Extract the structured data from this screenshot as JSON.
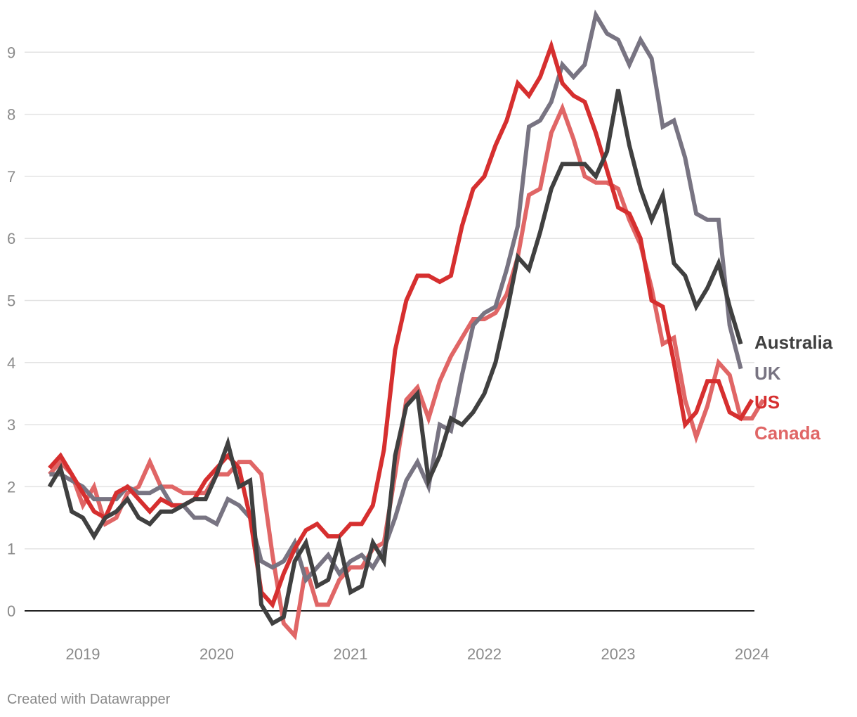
{
  "chart_data": {
    "type": "line",
    "title": "",
    "xlabel": "",
    "ylabel": "",
    "xlim": [
      2018.65,
      2024.0
    ],
    "ylim": [
      -0.4,
      9.6
    ],
    "yticks": [
      0,
      1,
      2,
      3,
      4,
      5,
      6,
      7,
      8,
      9
    ],
    "xticks": [
      2019,
      2020,
      2021,
      2022,
      2023,
      2024
    ],
    "grid": true,
    "legend": "direct labels at right end of lines",
    "start": 2018.75,
    "step_months": 1,
    "series": [
      {
        "name": "Canada",
        "color": "#e06666",
        "values": [
          2.2,
          2.4,
          2.2,
          1.7,
          2.0,
          1.4,
          1.5,
          1.9,
          2.0,
          2.4,
          2.0,
          2.0,
          1.9,
          1.9,
          1.9,
          2.2,
          2.2,
          2.4,
          2.4,
          2.2,
          0.9,
          -0.2,
          -0.4,
          0.7,
          0.1,
          0.1,
          0.5,
          0.7,
          0.7,
          1.0,
          1.1,
          2.2,
          3.4,
          3.6,
          3.1,
          3.7,
          4.1,
          4.4,
          4.7,
          4.7,
          4.8,
          5.1,
          5.7,
          6.7,
          6.8,
          7.7,
          8.1,
          7.6,
          7.0,
          6.9,
          6.9,
          6.8,
          6.3,
          5.9,
          5.2,
          4.3,
          4.4,
          3.4,
          2.8,
          3.3,
          4.0,
          3.8,
          3.1,
          3.1,
          3.4
        ]
      },
      {
        "name": "UK",
        "color": "#787482",
        "values": [
          2.2,
          2.2,
          2.1,
          2.0,
          1.8,
          1.8,
          1.8,
          2.0,
          1.9,
          1.9,
          2.0,
          1.7,
          1.7,
          1.5,
          1.5,
          1.4,
          1.8,
          1.7,
          1.5,
          0.8,
          0.7,
          0.8,
          1.1,
          0.5,
          0.7,
          0.9,
          0.6,
          0.8,
          0.9,
          0.7,
          1.0,
          1.5,
          2.1,
          2.4,
          2.0,
          3.0,
          2.9,
          3.8,
          4.6,
          4.8,
          4.9,
          5.5,
          6.2,
          7.8,
          7.9,
          8.2,
          8.8,
          8.6,
          8.8,
          9.6,
          9.3,
          9.2,
          8.8,
          9.2,
          8.9,
          7.8,
          7.9,
          7.3,
          6.4,
          6.3,
          6.3,
          4.6,
          3.9
        ]
      },
      {
        "name": "US",
        "color": "#d62f2f",
        "values": [
          2.3,
          2.5,
          2.2,
          1.9,
          1.6,
          1.5,
          1.9,
          2.0,
          1.8,
          1.6,
          1.8,
          1.7,
          1.7,
          1.8,
          2.1,
          2.3,
          2.5,
          2.3,
          1.5,
          0.3,
          0.1,
          0.6,
          1.0,
          1.3,
          1.4,
          1.2,
          1.2,
          1.4,
          1.4,
          1.7,
          2.6,
          4.2,
          5.0,
          5.4,
          5.4,
          5.3,
          5.4,
          6.2,
          6.8,
          7.0,
          7.5,
          7.9,
          8.5,
          8.3,
          8.6,
          9.1,
          8.5,
          8.3,
          8.2,
          7.7,
          7.1,
          6.5,
          6.4,
          6.0,
          5.0,
          4.9,
          4.0,
          3.0,
          3.2,
          3.7,
          3.7,
          3.2,
          3.1,
          3.4
        ]
      },
      {
        "name": "Australia",
        "color": "#404040",
        "values": [
          2.0,
          2.3,
          1.6,
          1.5,
          1.2,
          1.5,
          1.6,
          1.8,
          1.5,
          1.4,
          1.6,
          1.6,
          1.7,
          1.8,
          1.8,
          2.2,
          2.7,
          2.0,
          2.1,
          0.1,
          -0.2,
          -0.1,
          0.8,
          1.1,
          0.4,
          0.5,
          1.1,
          0.3,
          0.4,
          1.1,
          0.8,
          2.5,
          3.3,
          3.5,
          2.1,
          2.5,
          3.1,
          3.0,
          3.2,
          3.5,
          4.0,
          4.8,
          5.7,
          5.5,
          6.1,
          6.8,
          7.2,
          7.2,
          7.2,
          7.0,
          7.4,
          8.4,
          7.5,
          6.8,
          6.3,
          6.7,
          5.6,
          5.4,
          4.9,
          5.2,
          5.6,
          4.9,
          4.3
        ]
      }
    ]
  },
  "labels": [
    {
      "text": "Australia",
      "color": "#404040"
    },
    {
      "text": "UK",
      "color": "#787482"
    },
    {
      "text": "US",
      "color": "#d62f2f"
    },
    {
      "text": "Canada",
      "color": "#e06666"
    }
  ],
  "footer": {
    "credit": "Created with Datawrapper"
  }
}
